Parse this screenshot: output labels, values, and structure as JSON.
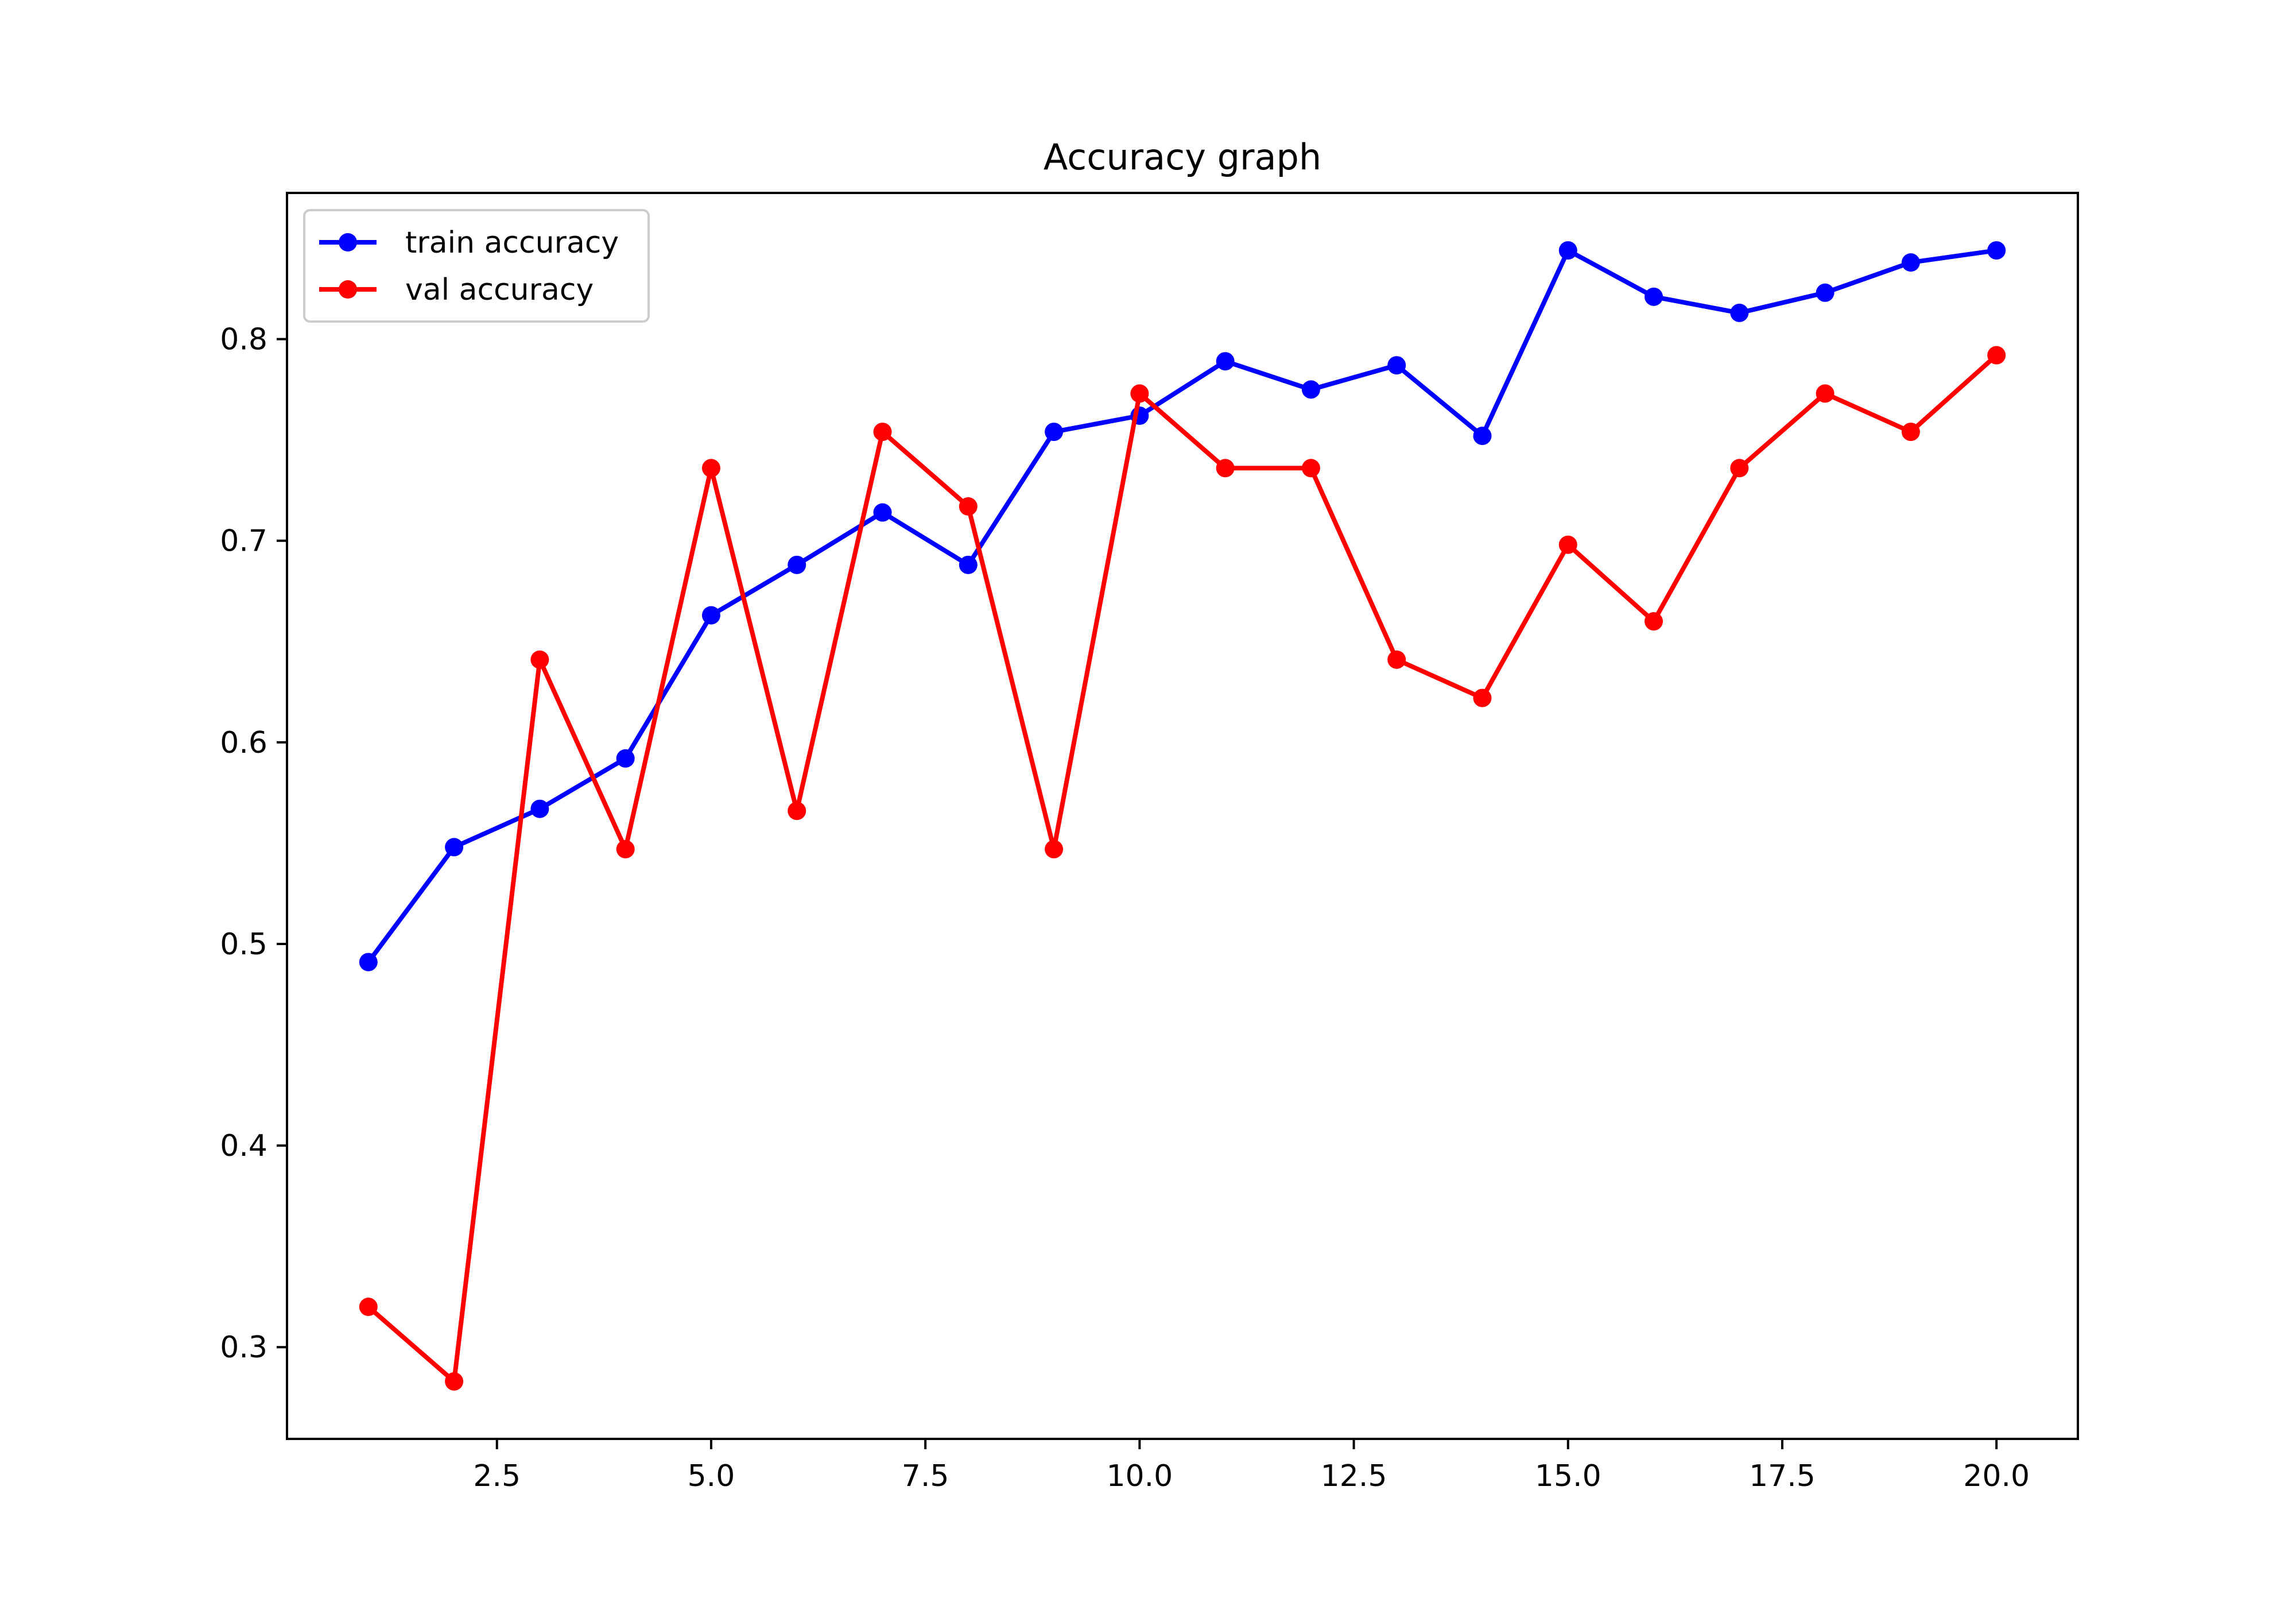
{
  "chart_data": {
    "type": "line",
    "title": "Accuracy graph",
    "xlabel": "",
    "ylabel": "",
    "xlim": [
      0.05,
      20.95
    ],
    "ylim": [
      0.2545,
      0.8725
    ],
    "xticks": [
      2.5,
      5.0,
      7.5,
      10.0,
      12.5,
      15.0,
      17.5,
      20.0
    ],
    "xtick_labels": [
      "2.5",
      "5.0",
      "7.5",
      "10.0",
      "12.5",
      "15.0",
      "17.5",
      "20.0"
    ],
    "yticks": [
      0.3,
      0.4,
      0.5,
      0.6,
      0.7,
      0.8
    ],
    "ytick_labels": [
      "0.3",
      "0.4",
      "0.5",
      "0.6",
      "0.7",
      "0.8"
    ],
    "grid": false,
    "legend_position": "top-left",
    "x": [
      1,
      2,
      3,
      4,
      5,
      6,
      7,
      8,
      9,
      10,
      11,
      12,
      13,
      14,
      15,
      16,
      17,
      18,
      19,
      20
    ],
    "series": [
      {
        "name": "train accuracy",
        "color": "#0000ff",
        "marker": "circle",
        "values": [
          0.491,
          0.548,
          0.567,
          0.592,
          0.663,
          0.688,
          0.714,
          0.688,
          0.754,
          0.762,
          0.789,
          0.775,
          0.787,
          0.752,
          0.844,
          0.821,
          0.813,
          0.823,
          0.838,
          0.844
        ]
      },
      {
        "name": "val accuracy",
        "color": "#ff0000",
        "marker": "circle",
        "values": [
          0.32,
          0.283,
          0.641,
          0.547,
          0.736,
          0.566,
          0.754,
          0.717,
          0.547,
          0.773,
          0.736,
          0.736,
          0.641,
          0.622,
          0.698,
          0.66,
          0.736,
          0.773,
          0.754,
          0.792
        ]
      }
    ]
  }
}
